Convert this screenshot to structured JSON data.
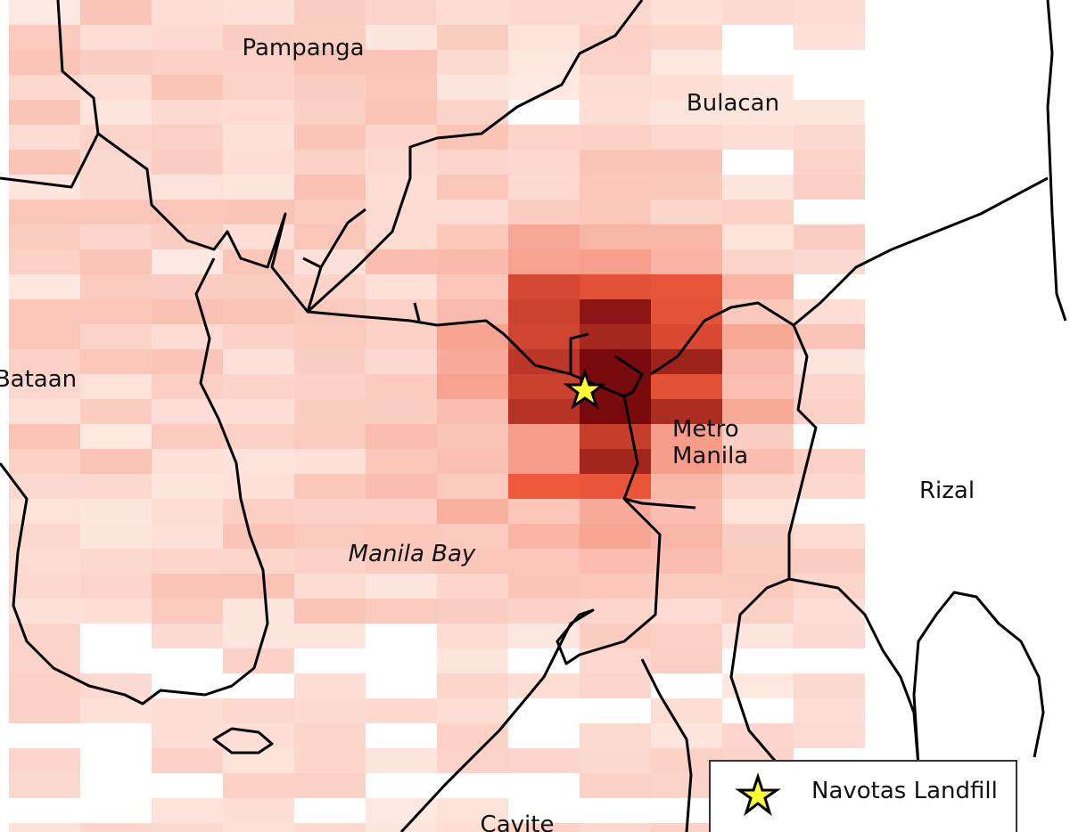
{
  "regions": [
    {
      "lines": [
        "Pampanga"
      ]
    },
    {
      "lines": [
        "Bulacan"
      ]
    },
    {
      "lines": [
        "Bataan"
      ]
    },
    {
      "lines": [
        "Metro",
        "Manila"
      ]
    },
    {
      "lines": [
        "Rizal"
      ]
    },
    {
      "lines": [
        "Cavite"
      ]
    }
  ],
  "water": {
    "label": "Manila Bay"
  },
  "legend": {
    "label": "Navotas Landfill"
  }
}
